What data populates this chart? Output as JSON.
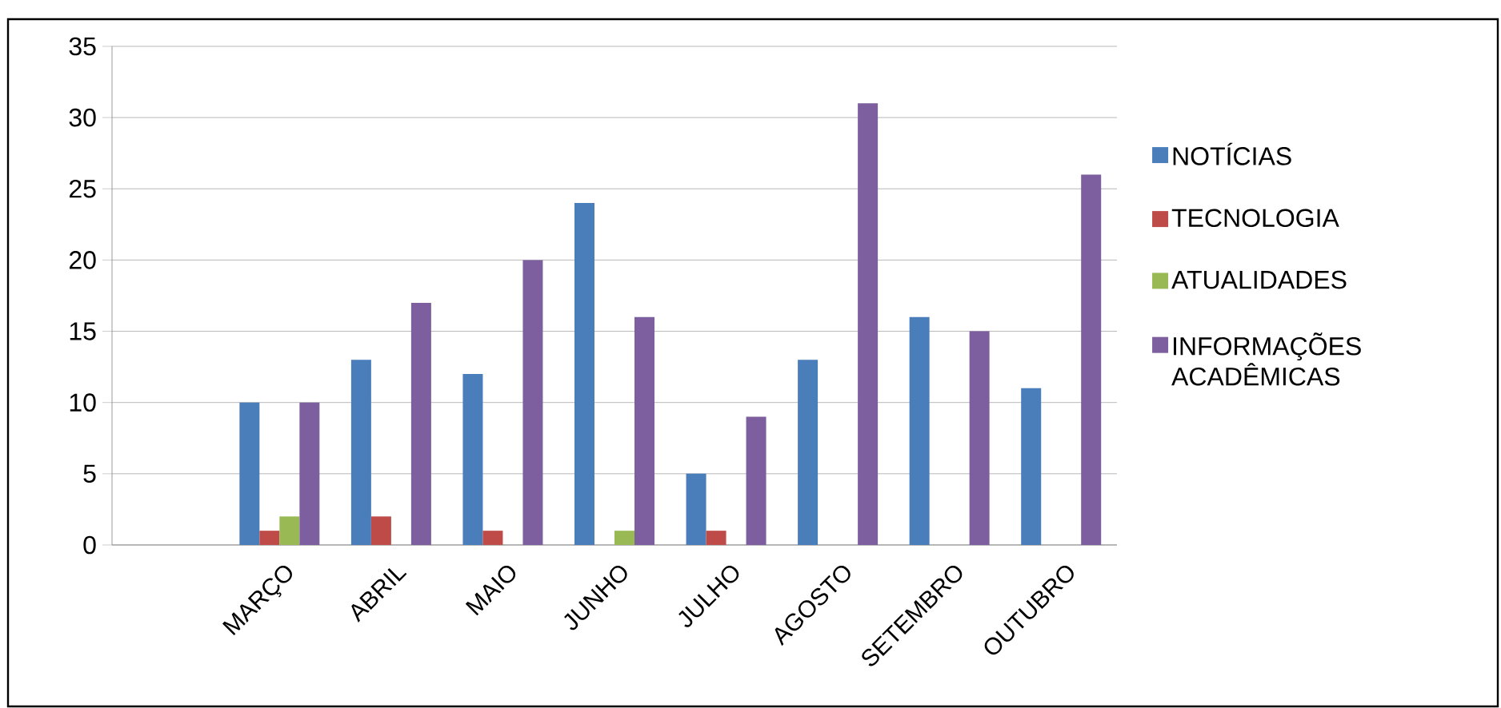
{
  "chart_data": {
    "type": "bar",
    "categories": [
      null,
      "MARÇO",
      "ABRIL",
      "MAIO",
      "JUNHO",
      "JULHO",
      "AGOSTO",
      "SETEMBRO",
      "OUTUBRO"
    ],
    "series": [
      {
        "name": "NOTÍCIAS",
        "color": "#4a7ebb",
        "values": [
          null,
          10,
          13,
          12,
          24,
          5,
          13,
          16,
          11
        ]
      },
      {
        "name": "TECNOLOGIA",
        "color": "#be4b48",
        "values": [
          null,
          1,
          2,
          1,
          0,
          1,
          0,
          0,
          0
        ]
      },
      {
        "name": "ATUALIDADES",
        "color": "#98b954",
        "values": [
          null,
          2,
          0,
          0,
          1,
          0,
          0,
          0,
          0
        ]
      },
      {
        "name": "INFORMAÇÕES ACADÊMICAS",
        "color": "#7d5fa0",
        "values": [
          null,
          10,
          17,
          20,
          16,
          9,
          31,
          15,
          26
        ]
      }
    ],
    "ylim": [
      0,
      35
    ],
    "yticks": [
      0,
      5,
      10,
      15,
      20,
      25,
      30,
      35
    ],
    "grid": "y",
    "legend": "right"
  }
}
